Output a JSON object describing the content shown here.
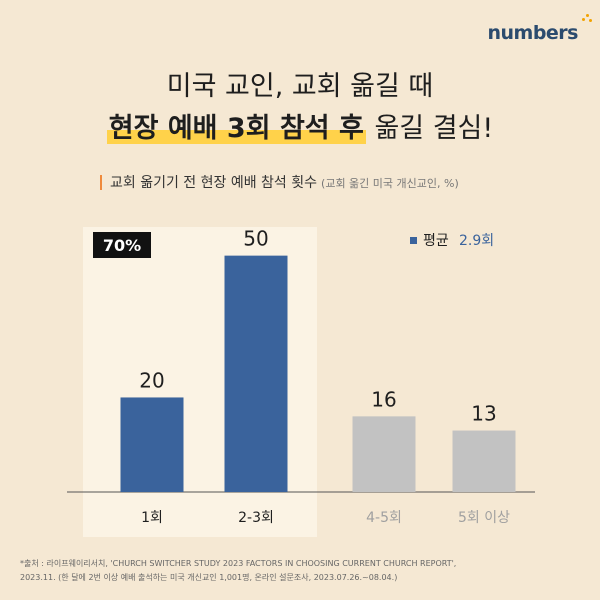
{
  "brand": {
    "logo_text": "numbers"
  },
  "headline": {
    "line1": "미국 교인, 교회 옮길 때",
    "line2_highlight": "현장 예배 3회 참석 후",
    "line2_rest": " 옮길 결심!"
  },
  "subtitle": {
    "text": "교회 옮기기 전 현장 예배 참석 횟수",
    "note": "(교회 옮긴 미국 개신교인, %)"
  },
  "chart_data": {
    "type": "bar",
    "categories": [
      "1회",
      "2-3회",
      "4-5회",
      "5회 이상"
    ],
    "values": [
      20,
      50,
      16,
      13
    ],
    "highlight_group": {
      "categories": [
        "1회",
        "2-3회"
      ],
      "label": "70%"
    },
    "legend": {
      "label": "평균",
      "value": "2.9회",
      "placement": "top-right"
    },
    "colors": {
      "highlight_bar": "#3a639c",
      "other_bar": "#c2c2c2",
      "highlight_bg": "#fbf3e4",
      "label_dark": "#1f1f1f",
      "label_gray": "#a0a0a0",
      "legend_value": "#3a639c"
    },
    "ylim": [
      0,
      55
    ],
    "grid": false
  },
  "source": {
    "line1": "*출처 : 라이프웨이리서치, 'CHURCH SWITCHER STUDY 2023 FACTORS IN CHOOSING CURRENT CHURCH REPORT',",
    "line2": "2023.11. (한 달에 2번 이상 예배 출석하는 미국 개신교인 1,001명, 온라인 설문조사, 2023.07.26.~08.04.)"
  }
}
